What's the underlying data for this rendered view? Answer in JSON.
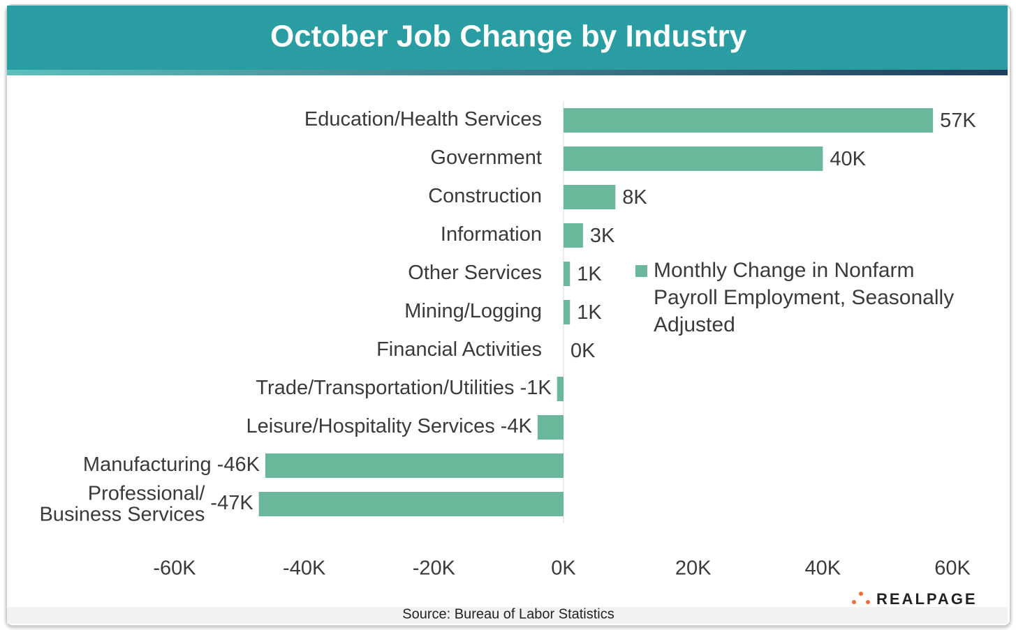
{
  "chart_data": {
    "type": "bar",
    "orientation": "horizontal",
    "title": "October Job Change by Industry",
    "categories": [
      "Education/Health Services",
      "Government",
      "Construction",
      "Information",
      "Other Services",
      "Mining/Logging",
      "Financial Activities",
      "Trade/Transportation/Utilities",
      "Leisure/Hospitality Services",
      "Manufacturing",
      "Professional/\nBusiness Services"
    ],
    "series": [
      {
        "name": "Monthly Change in Nonfarm Payroll Employment, Seasonally Adjusted",
        "color": "#69b89c",
        "values": [
          57,
          40,
          8,
          3,
          1,
          1,
          0,
          -1,
          -4,
          -46,
          -47
        ],
        "value_labels": [
          "57K",
          "40K",
          "8K",
          "3K",
          "1K",
          "1K",
          "0K",
          "-1K",
          "-4K",
          "-46K",
          "-47K"
        ]
      }
    ],
    "xlim": [
      -60,
      60
    ],
    "xticks": [
      {
        "value": -60,
        "label": "-60K"
      },
      {
        "value": -40,
        "label": "-40K"
      },
      {
        "value": -20,
        "label": "-20K"
      },
      {
        "value": 0,
        "label": "0K"
      },
      {
        "value": 20,
        "label": "20K"
      },
      {
        "value": 40,
        "label": "40K"
      },
      {
        "value": 60,
        "label": "60K"
      }
    ],
    "legend": "right"
  },
  "source": "Source: Bureau of Labor Statistics",
  "logo": "REALPAGE"
}
